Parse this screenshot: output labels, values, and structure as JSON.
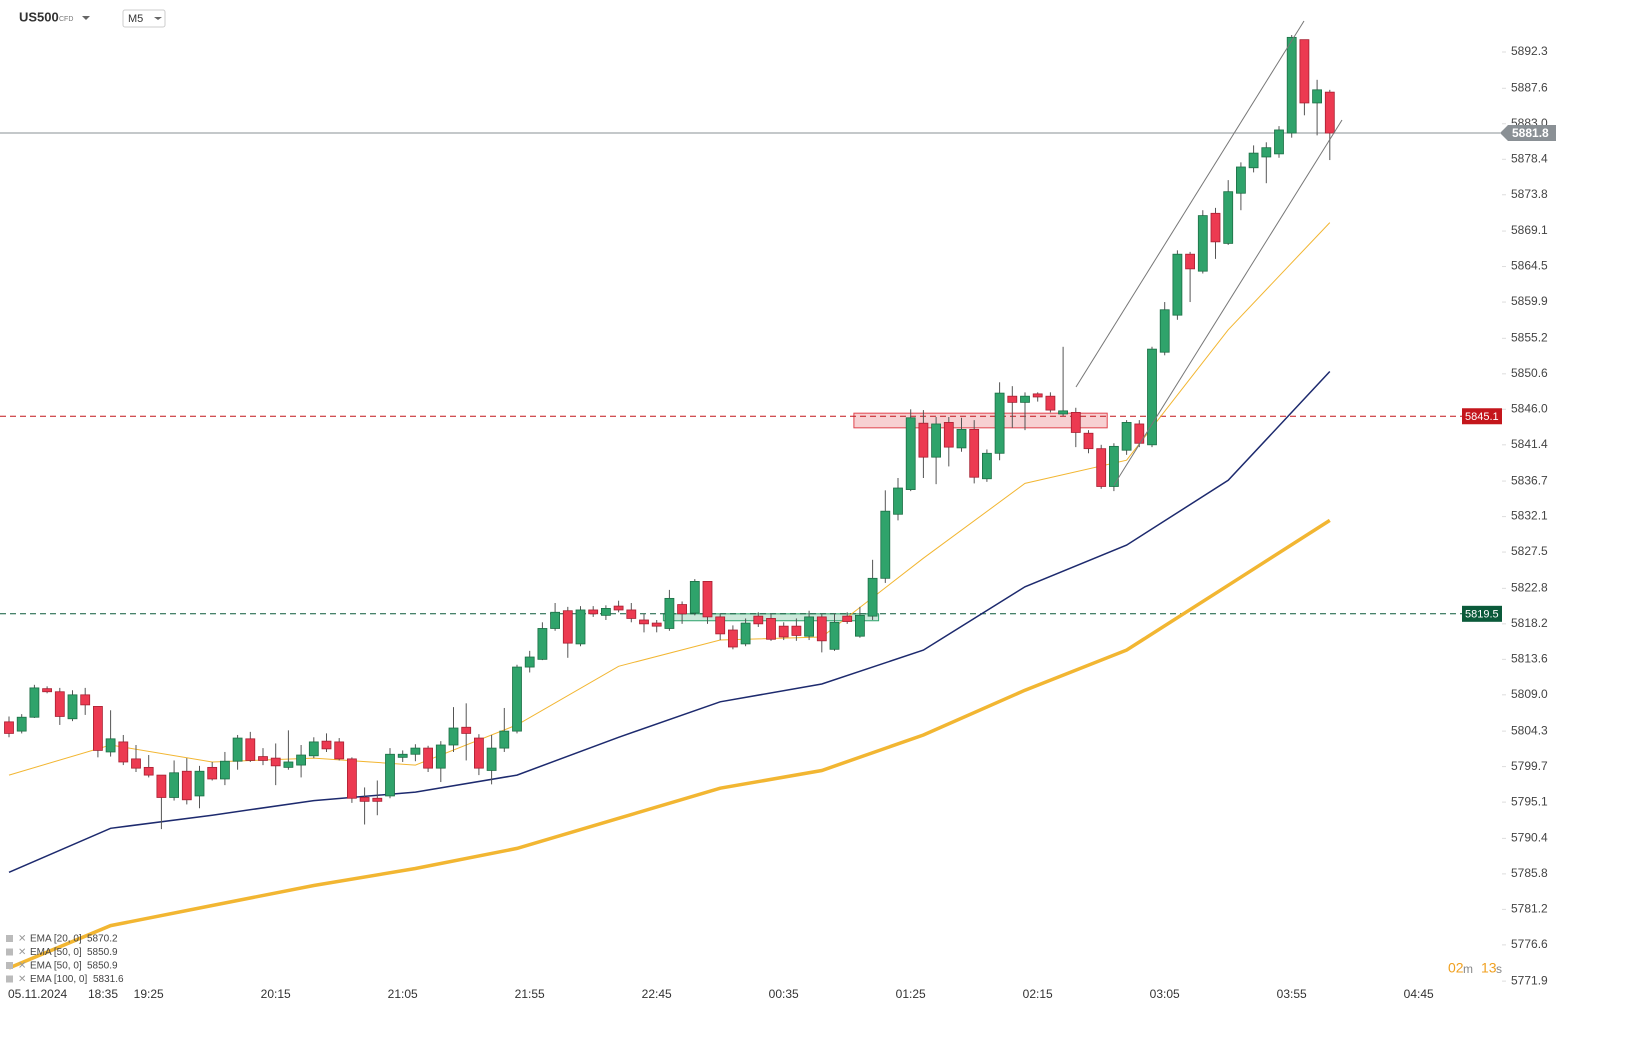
{
  "header": {
    "symbol": "US500",
    "market": "CFD",
    "interval": "M5"
  },
  "countdown": [
    "02",
    "m",
    "13",
    "s"
  ],
  "chart_data": {
    "type": "candlestick",
    "date": "05.11.2024",
    "categories": [
      null,
      "18:35",
      null,
      null,
      null,
      null,
      null,
      null,
      null,
      null,
      null,
      "19:25",
      null,
      null,
      null,
      null,
      null,
      null,
      null,
      null,
      null,
      "20:15",
      null,
      null,
      null,
      null,
      null,
      null,
      null,
      null,
      null,
      "21:05",
      null,
      null,
      null,
      null,
      null,
      null,
      null,
      null,
      null,
      "21:55",
      null,
      null,
      null,
      null,
      null,
      null,
      null,
      null,
      null,
      "22:45",
      null,
      null,
      null,
      null,
      null,
      null,
      null,
      null,
      null,
      "00:35",
      null,
      null,
      null,
      null,
      null,
      null,
      null,
      null,
      null,
      "01:25",
      null,
      null,
      null,
      null,
      null,
      null,
      null,
      null,
      null,
      "02:15",
      null,
      null,
      null,
      null,
      null,
      null,
      null,
      null,
      null,
      "03:05",
      null,
      null,
      null,
      null,
      null,
      null,
      null,
      null,
      null,
      "03:55",
      null,
      null,
      null,
      null,
      null,
      null,
      null,
      null,
      null,
      "04:45"
    ],
    "open": [
      5805.5,
      5804.3,
      5806.1,
      5809.8,
      5809.4,
      5805.9,
      5809.0,
      5807.5,
      5801.6,
      5802.9,
      5800.7,
      5799.6,
      5798.6,
      5795.7,
      5799.1,
      5795.9,
      5799.6,
      5798.1,
      5800.4,
      5803.3,
      5801.0,
      5800.8,
      5799.6,
      5799.9,
      5801.1,
      5803.0,
      5802.9,
      5800.7,
      5795.7,
      5795.6,
      5795.9,
      5800.9,
      5801.3,
      5802.1,
      5799.5,
      5802.5,
      5804.8,
      5803.4,
      5799.2,
      5802.1,
      5804.3,
      5812.6,
      5813.6,
      5817.6,
      5819.9,
      5815.6,
      5820.0,
      5819.3,
      5820.5,
      5820.0,
      5818.7,
      5818.3,
      5817.6,
      5820.7,
      5819.6,
      5823.7,
      5819.1,
      5817.4,
      5815.6,
      5819.2,
      5818.9,
      5817.9,
      5817.9,
      5816.6,
      5819.1,
      5814.9,
      5819.2,
      5816.6,
      5819.2,
      5824.1,
      5832.4,
      5835.6,
      5844.2,
      5839.8,
      5844.3,
      5841.0,
      5843.4,
      5837.0,
      5840.3,
      5847.7,
      5846.9,
      5848.0,
      5847.7,
      5845.4,
      5845.6,
      5842.9,
      5840.9,
      5836.0,
      5840.7,
      5844.1,
      5841.4,
      5853.4,
      5858.2,
      5866.1,
      5863.9,
      5871.4,
      5867.5,
      5874.0,
      5877.3,
      5878.7,
      5879.1,
      5881.8,
      5893.9,
      5885.7,
      5887.1,
      null,
      null,
      null,
      null,
      null,
      null,
      null
    ],
    "high": [
      5806.2,
      5806.5,
      5810.3,
      5810.1,
      5809.9,
      5809.6,
      5809.9,
      5807.5,
      5807.0,
      5803.8,
      5802.5,
      5801.2,
      5798.6,
      5800.5,
      5800.8,
      5799.8,
      5800.3,
      5801.6,
      5803.8,
      5804.2,
      5802.1,
      5802.7,
      5804.4,
      5802.5,
      5803.5,
      5804.0,
      5803.4,
      5800.9,
      5797.0,
      5797.9,
      5802.1,
      5801.8,
      5802.6,
      5802.4,
      5803.0,
      5807.4,
      5807.9,
      5803.9,
      5803.8,
      5807.3,
      5812.9,
      5814.7,
      5818.4,
      5820.9,
      5820.4,
      5820.5,
      5820.5,
      5820.6,
      5821.2,
      5820.9,
      5819.5,
      5818.7,
      5822.6,
      5821.1,
      5824.0,
      5823.7,
      5819.5,
      5818.0,
      5818.9,
      5819.7,
      5819.5,
      5818.4,
      5818.9,
      5819.9,
      5819.5,
      5819.5,
      5819.7,
      5820.4,
      5826.5,
      5835.5,
      5837.1,
      5846.0,
      5845.9,
      5845.0,
      5845.0,
      5844.9,
      5844.6,
      5840.8,
      5849.5,
      5849.0,
      5848.2,
      5848.2,
      5848.2,
      5854.1,
      5846.2,
      5843.3,
      5841.4,
      5841.6,
      5844.6,
      5844.6,
      5854.1,
      5859.9,
      5866.6,
      5866.4,
      5871.8,
      5872.1,
      5875.7,
      5878.0,
      5880.2,
      5880.6,
      5882.7,
      5894.5,
      5893.9,
      5888.7,
      5887.4,
      null,
      null,
      null,
      null,
      null,
      null,
      null
    ],
    "low": [
      5803.5,
      5804.0,
      5806.0,
      5809.2,
      5805.1,
      5805.6,
      5806.4,
      5800.9,
      5801.0,
      5799.9,
      5799.0,
      5798.3,
      5791.6,
      5795.3,
      5794.8,
      5794.3,
      5797.9,
      5797.3,
      5799.3,
      5800.3,
      5799.9,
      5797.3,
      5799.3,
      5798.3,
      5800.8,
      5801.6,
      5800.5,
      5795.0,
      5792.2,
      5793.4,
      5795.6,
      5800.3,
      5800.4,
      5799.0,
      5797.7,
      5801.6,
      5800.5,
      5798.6,
      5797.4,
      5801.6,
      5804.0,
      5811.9,
      5813.5,
      5817.3,
      5813.8,
      5815.3,
      5819.1,
      5818.7,
      5819.7,
      5818.4,
      5817.1,
      5817.1,
      5817.3,
      5818.2,
      5819.3,
      5818.2,
      5816.1,
      5814.9,
      5815.3,
      5817.8,
      5816.0,
      5816.1,
      5816.0,
      5816.1,
      5814.5,
      5814.7,
      5818.2,
      5816.4,
      5818.7,
      5823.5,
      5831.6,
      5835.4,
      5837.1,
      5836.3,
      5838.6,
      5840.5,
      5836.4,
      5836.6,
      5839.4,
      5843.6,
      5843.3,
      5847.0,
      5845.6,
      5845.1,
      5841.1,
      5840.3,
      5835.7,
      5835.4,
      5840.1,
      5841.1,
      5841.1,
      5853.0,
      5857.6,
      5859.9,
      5863.6,
      5865.5,
      5867.3,
      5871.8,
      5876.7,
      5875.3,
      5878.6,
      5881.2,
      5884.1,
      5881.5,
      5878.3,
      null,
      null,
      null,
      null,
      null,
      null,
      null
    ],
    "close": [
      5804.0,
      5806.1,
      5809.9,
      5809.4,
      5806.2,
      5809.0,
      5807.7,
      5801.8,
      5803.3,
      5800.3,
      5799.5,
      5798.6,
      5795.7,
      5798.9,
      5795.4,
      5799.1,
      5798.1,
      5800.4,
      5803.4,
      5800.5,
      5800.5,
      5799.8,
      5800.3,
      5801.2,
      5802.9,
      5802.0,
      5800.7,
      5795.6,
      5795.2,
      5795.2,
      5801.3,
      5801.3,
      5802.1,
      5799.5,
      5802.5,
      5804.7,
      5804.0,
      5799.5,
      5802.1,
      5804.3,
      5812.6,
      5813.9,
      5817.6,
      5819.7,
      5815.7,
      5820.0,
      5819.5,
      5820.2,
      5820.0,
      5818.9,
      5818.2,
      5817.9,
      5821.5,
      5819.5,
      5823.7,
      5819.1,
      5816.9,
      5815.2,
      5818.3,
      5818.2,
      5816.2,
      5816.5,
      5816.7,
      5819.1,
      5816.0,
      5818.4,
      5818.5,
      5819.3,
      5824.1,
      5832.8,
      5835.8,
      5844.9,
      5839.8,
      5844.1,
      5841.1,
      5843.4,
      5837.2,
      5840.3,
      5848.1,
      5846.9,
      5847.7,
      5847.6,
      5845.9,
      5845.8,
      5843.0,
      5840.9,
      5836.0,
      5841.2,
      5844.3,
      5841.6,
      5853.8,
      5858.9,
      5866.1,
      5864.2,
      5871.1,
      5867.7,
      5874.2,
      5877.4,
      5879.2,
      5879.9,
      5882.2,
      5894.2,
      5885.7,
      5887.4,
      5881.8,
      null,
      null,
      null,
      null,
      null,
      null,
      null
    ],
    "up_color": "#2fa36b",
    "down_color": "#ec3a51",
    "ylim": [
      5771.4,
      5899.04
    ],
    "yticks": [
      5892.3,
      5887.6,
      {
        "value": 5883.0,
        "label": "5883.0"
      },
      5878.4,
      5873.8,
      5869.1,
      5864.5,
      5859.9,
      5855.2,
      5850.6,
      {
        "value": 5846.0,
        "label": "5846.0"
      },
      5841.4,
      5836.7,
      5832.1,
      5827.5,
      5822.8,
      5818.2,
      5813.6,
      {
        "value": 5809.0,
        "label": "5809.0"
      },
      5804.3,
      5799.7,
      5795.1,
      5790.4,
      5785.8,
      5781.2,
      5776.6,
      5771.9
    ],
    "grid": false,
    "overlays": [
      {
        "name": "EMA [20, 0]",
        "last": 5870.2,
        "color": "#f2b632",
        "width": 1,
        "x": [
          0,
          8,
          16,
          24,
          32,
          40,
          48,
          56,
          64,
          72,
          80,
          88,
          96,
          104
        ],
        "values": [
          5798.6,
          5802.5,
          5800.3,
          5800.8,
          5799.9,
          5805.1,
          5812.7,
          5816.1,
          5816.5,
          5826.7,
          5836.4,
          5839.4,
          5856.3,
          5870.2
        ]
      },
      {
        "name": "EMA [50, 0]",
        "last": 5850.9,
        "color": "#1d2a6e",
        "width": 1.5,
        "x": [
          0,
          8,
          16,
          24,
          32,
          40,
          48,
          56,
          64,
          72,
          80,
          88,
          96,
          104
        ],
        "values": [
          5786.0,
          5791.7,
          5793.4,
          5795.3,
          5796.4,
          5798.6,
          5803.5,
          5808.1,
          5810.4,
          5814.8,
          5823.0,
          5828.4,
          5836.8,
          5850.9
        ]
      },
      {
        "name": "EMA [50, 0]",
        "last": 5850.9,
        "color": "#1d2a6e",
        "width": 1.5
      },
      {
        "name": "EMA [100, 0]",
        "last": 5831.6,
        "color": "#f2b632",
        "width": 3.5,
        "x": [
          0,
          8,
          16,
          24,
          32,
          40,
          48,
          56,
          64,
          72,
          80,
          88,
          96,
          104
        ],
        "values": [
          5773.6,
          5779.1,
          5781.7,
          5784.3,
          5786.5,
          5789.1,
          5793.0,
          5796.9,
          5799.2,
          5803.8,
          5809.6,
          5814.8,
          5823.2,
          5831.6
        ]
      }
    ],
    "levels": [
      {
        "value": 5881.8,
        "color": "#8a9095",
        "style": "solid"
      },
      {
        "value": 5845.1,
        "color": "#c4161c",
        "style": "dashed"
      },
      {
        "value": 5819.5,
        "color": "#0b5a3a",
        "style": "dashed"
      }
    ],
    "zones": [
      {
        "from": 52,
        "to": 68,
        "low": 5818.6,
        "high": 5819.5,
        "color": "#2fa36b"
      },
      {
        "from": 67,
        "to": 86,
        "low": 5843.6,
        "high": 5845.5,
        "color": "#e0434d"
      }
    ]
  }
}
